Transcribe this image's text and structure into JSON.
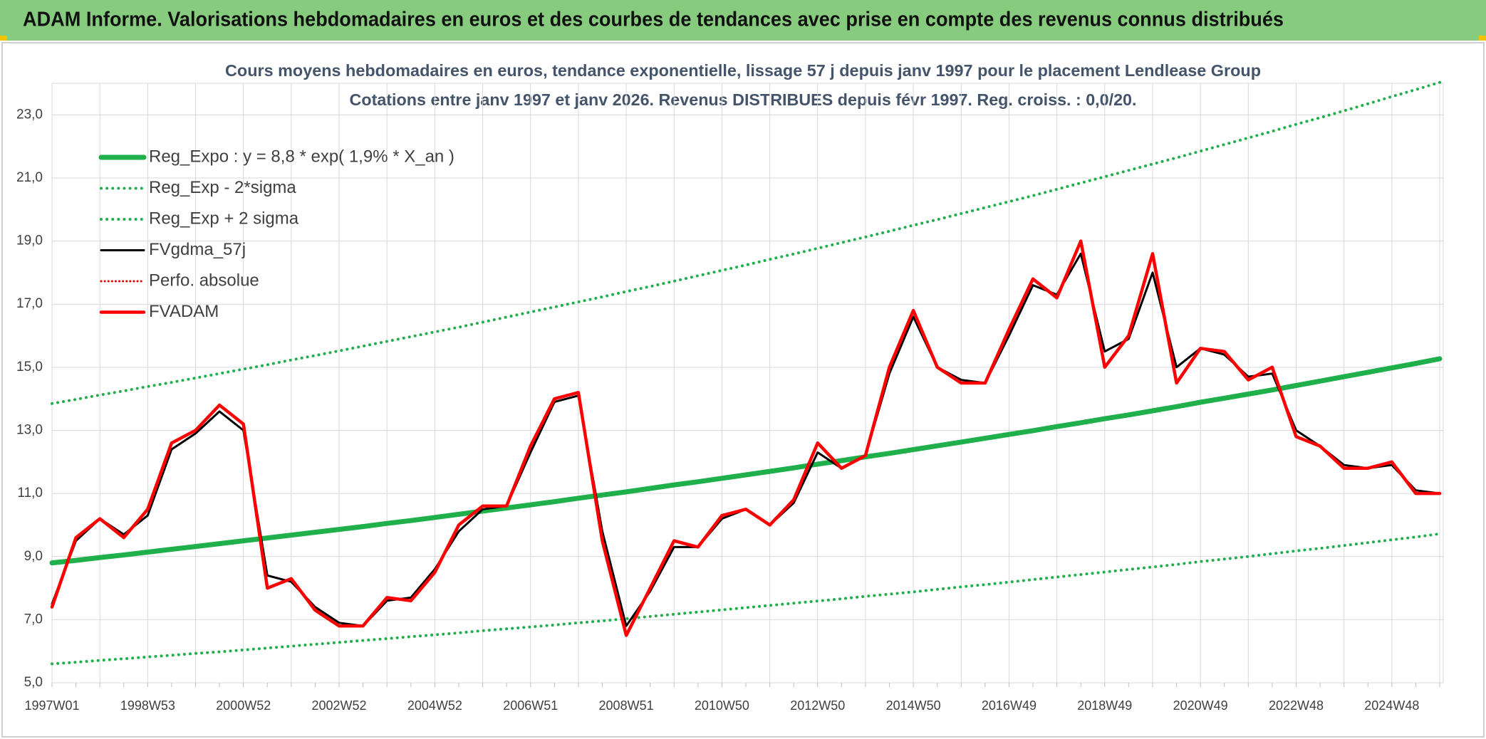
{
  "chart_data": {
    "type": "line",
    "title": "ADAM Informe. Valorisations hebdomadaires en euros et des courbes de tendances avec prise en compte des revenus connus distribués",
    "subtitle": [
      "Cours moyens hebdomadaires en euros, tendance exponentielle, lissage 57 j depuis janv 1997 pour le placement Lendlease Group",
      "Cotations entre janv 1997 et janv 2026. Revenus DISTRIBUES depuis févr 1997. Reg. croiss. : 0,0/20."
    ],
    "categories": [
      "1997W01",
      null,
      null,
      null,
      "1998W53",
      null,
      null,
      null,
      "2000W52",
      null,
      null,
      null,
      "2002W52",
      null,
      null,
      null,
      "2004W52",
      null,
      null,
      null,
      "2006W51",
      null,
      null,
      null,
      "2008W51",
      null,
      null,
      null,
      "2010W50",
      null,
      null,
      null,
      "2012W50",
      null,
      null,
      null,
      "2014W50",
      null,
      null,
      null,
      "2016W49",
      null,
      null,
      null,
      "2018W49",
      null,
      null,
      null,
      "2020W49",
      null,
      null,
      null,
      "2022W48",
      null,
      null,
      null,
      "2024W48",
      null,
      null
    ],
    "ylim": [
      5,
      24
    ],
    "yticks": [
      {
        "value": 5,
        "label": "5,0"
      },
      {
        "value": 7,
        "label": "7,0"
      },
      {
        "value": 9,
        "label": "9,0"
      },
      {
        "value": 11,
        "label": "11,0"
      },
      {
        "value": 13,
        "label": "13,0"
      },
      {
        "value": 15,
        "label": "15,0"
      },
      {
        "value": 17,
        "label": "17,0"
      },
      {
        "value": 19,
        "label": "19,0"
      },
      {
        "value": 21,
        "label": "21,0"
      },
      {
        "value": 23,
        "label": "23,0"
      }
    ],
    "grid": true,
    "legend": "upper left",
    "series": [
      {
        "name": "Reg_Expo : y = 8,8 * exp( 1,9% *  X_an )",
        "color": "#1fb04c",
        "line_style": "solid",
        "values": [
          8.8,
          8.88,
          8.97,
          9.05,
          9.14,
          9.23,
          9.32,
          9.41,
          9.5,
          9.59,
          9.68,
          9.77,
          9.86,
          9.95,
          10.05,
          10.14,
          10.24,
          10.34,
          10.44,
          10.54,
          10.64,
          10.74,
          10.85,
          10.95,
          11.05,
          11.16,
          11.27,
          11.37,
          11.48,
          11.59,
          11.7,
          11.81,
          11.93,
          12.04,
          12.16,
          12.27,
          12.39,
          12.51,
          12.63,
          12.75,
          12.87,
          12.99,
          13.12,
          13.24,
          13.37,
          13.49,
          13.62,
          13.75,
          13.89,
          14.02,
          14.15,
          14.28,
          14.42,
          14.56,
          14.7,
          14.84,
          14.98,
          15.12,
          15.27
        ]
      },
      {
        "name": "Reg_Exp - 2*sigma",
        "color": "#1fb04c",
        "line_style": "dotted",
        "values": [
          5.6,
          5.65,
          5.71,
          5.76,
          5.82,
          5.87,
          5.93,
          5.98,
          6.04,
          6.1,
          6.16,
          6.22,
          6.28,
          6.34,
          6.4,
          6.46,
          6.52,
          6.58,
          6.65,
          6.71,
          6.77,
          6.83,
          6.9,
          6.96,
          7.03,
          7.1,
          7.17,
          7.24,
          7.31,
          7.38,
          7.45,
          7.52,
          7.59,
          7.66,
          7.74,
          7.81,
          7.88,
          7.96,
          8.04,
          8.11,
          8.19,
          8.27,
          8.35,
          8.43,
          8.51,
          8.59,
          8.67,
          8.75,
          8.84,
          8.92,
          9.0,
          9.09,
          9.18,
          9.26,
          9.35,
          9.44,
          9.53,
          9.62,
          9.72
        ]
      },
      {
        "name": "Reg_Exp + 2 sigma",
        "color": "#1fb04c",
        "line_style": "dotted",
        "values": [
          13.85,
          13.98,
          14.12,
          14.25,
          14.39,
          14.52,
          14.66,
          14.8,
          14.94,
          15.08,
          15.23,
          15.37,
          15.52,
          15.67,
          15.82,
          15.97,
          16.12,
          16.27,
          16.43,
          16.59,
          16.75,
          16.91,
          17.07,
          17.23,
          17.4,
          17.56,
          17.73,
          17.9,
          18.07,
          18.24,
          18.42,
          18.59,
          18.77,
          18.95,
          19.13,
          19.31,
          19.5,
          19.68,
          19.87,
          20.06,
          20.25,
          20.44,
          20.64,
          20.84,
          21.04,
          21.24,
          21.44,
          21.64,
          21.85,
          22.06,
          22.27,
          22.48,
          22.7,
          22.91,
          23.13,
          23.35,
          23.58,
          23.8,
          24.03
        ]
      },
      {
        "name": "FVgdma_57j",
        "color": "#000000",
        "line_style": "solid",
        "values": [
          7.5,
          9.5,
          10.2,
          9.7,
          10.3,
          12.4,
          12.9,
          13.6,
          13.0,
          8.4,
          8.2,
          7.4,
          6.9,
          6.8,
          7.6,
          7.7,
          8.6,
          9.8,
          10.5,
          10.6,
          12.3,
          13.9,
          14.1,
          9.8,
          6.8,
          7.9,
          9.3,
          9.3,
          10.2,
          10.5,
          10.0,
          10.7,
          12.3,
          11.8,
          12.2,
          14.8,
          16.6,
          15.0,
          14.6,
          14.5,
          16.0,
          17.6,
          17.3,
          18.6,
          15.5,
          15.9,
          18.0,
          15.0,
          15.6,
          15.4,
          14.7,
          14.8,
          13.0,
          12.5,
          11.9,
          11.8,
          11.9,
          11.1,
          11.0
        ]
      },
      {
        "name": "Perfo. absolue",
        "color": "#e00000",
        "line_style": "dotted",
        "values": [
          null,
          null,
          null,
          null,
          null,
          null,
          null,
          null,
          null,
          null,
          null,
          null,
          null,
          null,
          null,
          null,
          null,
          null,
          null,
          null,
          null,
          null,
          null,
          null,
          null,
          null,
          null,
          null,
          null,
          null,
          null,
          null,
          null,
          null,
          null,
          null,
          null,
          null,
          null,
          null,
          null,
          null,
          null,
          null,
          null,
          null,
          null,
          null,
          null,
          null,
          null,
          null,
          null,
          null,
          null,
          null,
          null,
          null,
          null
        ]
      },
      {
        "name": "FVADAM",
        "color": "#ff0000",
        "line_style": "solid",
        "values": [
          7.4,
          9.6,
          10.2,
          9.6,
          10.5,
          12.6,
          13.0,
          13.8,
          13.2,
          8.0,
          8.3,
          7.3,
          6.8,
          6.8,
          7.7,
          7.6,
          8.5,
          10.0,
          10.6,
          10.6,
          12.5,
          14.0,
          14.2,
          9.5,
          6.5,
          8.0,
          9.5,
          9.3,
          10.3,
          10.5,
          10.0,
          10.8,
          12.6,
          11.8,
          12.2,
          15.0,
          16.8,
          15.0,
          14.5,
          14.5,
          16.2,
          17.8,
          17.2,
          19.0,
          15.0,
          16.0,
          18.6,
          14.5,
          15.6,
          15.5,
          14.6,
          15.0,
          12.8,
          12.5,
          11.8,
          11.8,
          12.0,
          11.0,
          11.0
        ]
      }
    ]
  }
}
